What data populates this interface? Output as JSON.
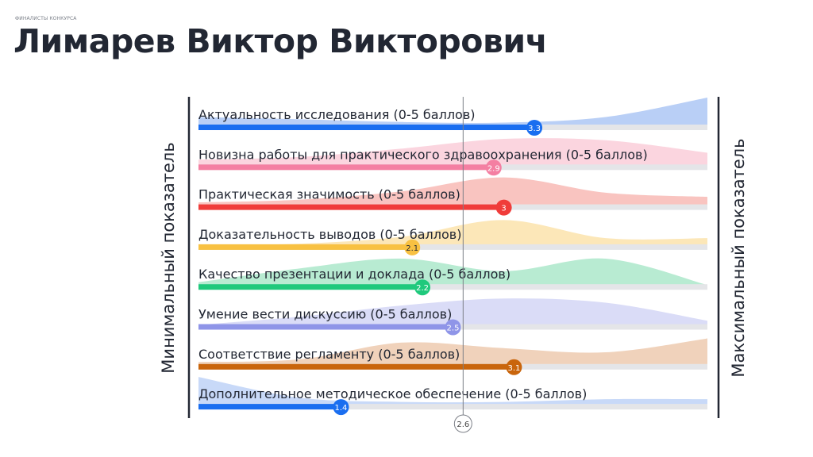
{
  "header": {
    "supertitle": "ФИНАЛИСТЫ КОНКУРСА",
    "title": "Лимарев Виктор Викторович"
  },
  "axis": {
    "min_label": "Минимальный показатель",
    "max_label": "Максимальный показатель"
  },
  "chart_data": {
    "type": "bar",
    "orientation": "horizontal",
    "xlim": [
      0,
      5
    ],
    "reference": {
      "value": 2.6,
      "label": "2.6"
    },
    "density_note_x": [
      0,
      1,
      2,
      3,
      4,
      5
    ],
    "series": [
      {
        "label": "Актуальность исследования (0-5 баллов)",
        "value": 3.3,
        "value_label": "3.3",
        "color": "#1a6ef0",
        "area": "#b9cff6",
        "density": [
          0.3,
          0.22,
          0.12,
          0.1,
          0.3,
          1.0
        ]
      },
      {
        "label": "Новизна работы для практического здравоохранения (0-5 баллов)",
        "value": 2.9,
        "value_label": "2.9",
        "color": "#f47fa2",
        "area": "#fbd5df",
        "density": [
          0.2,
          0.3,
          0.6,
          0.95,
          0.9,
          0.45
        ]
      },
      {
        "label": "Практическая значимость (0-5 баллов)",
        "value": 3,
        "value_label": "3",
        "color": "#f03c3a",
        "area": "#f9c4c0",
        "density": [
          0.1,
          0.2,
          0.5,
          1.0,
          0.45,
          0.3
        ]
      },
      {
        "label": "Доказательность выводов (0-5 баллов)",
        "value": 2.1,
        "value_label": "2.1",
        "color": "#f8c142",
        "area": "#fce7b8",
        "density": [
          0.0,
          0.05,
          0.3,
          0.9,
          0.25,
          0.25
        ]
      },
      {
        "label": "Качество презентации и доклада (0-5 баллов)",
        "value": 2.2,
        "value_label": "2.2",
        "color": "#1fc97c",
        "area": "#b8ebd2",
        "density": [
          0.1,
          0.6,
          0.95,
          0.5,
          0.95,
          0.0
        ]
      },
      {
        "label": "Умение вести дискуссию (0-5 баллов)",
        "value": 2.5,
        "value_label": "2.5",
        "color": "#8f95e8",
        "area": "#dadcf7",
        "density": [
          0.0,
          0.3,
          0.7,
          0.95,
          0.8,
          0.15
        ]
      },
      {
        "label": "Соответствие регламенту (0-5 баллов)",
        "value": 3.1,
        "value_label": "3.1",
        "color": "#c9650c",
        "area": "#f0d2bb",
        "density": [
          0.1,
          0.2,
          0.8,
          0.6,
          0.45,
          0.95
        ]
      },
      {
        "label": "Дополнительное методическое обеспечение (0-5 баллов)",
        "value": 1.4,
        "value_label": "1.4",
        "color": "#1a6ef0",
        "area": "#c8d9f8",
        "density": [
          1.0,
          0.25,
          0.1,
          0.1,
          0.2,
          0.2
        ]
      }
    ]
  }
}
